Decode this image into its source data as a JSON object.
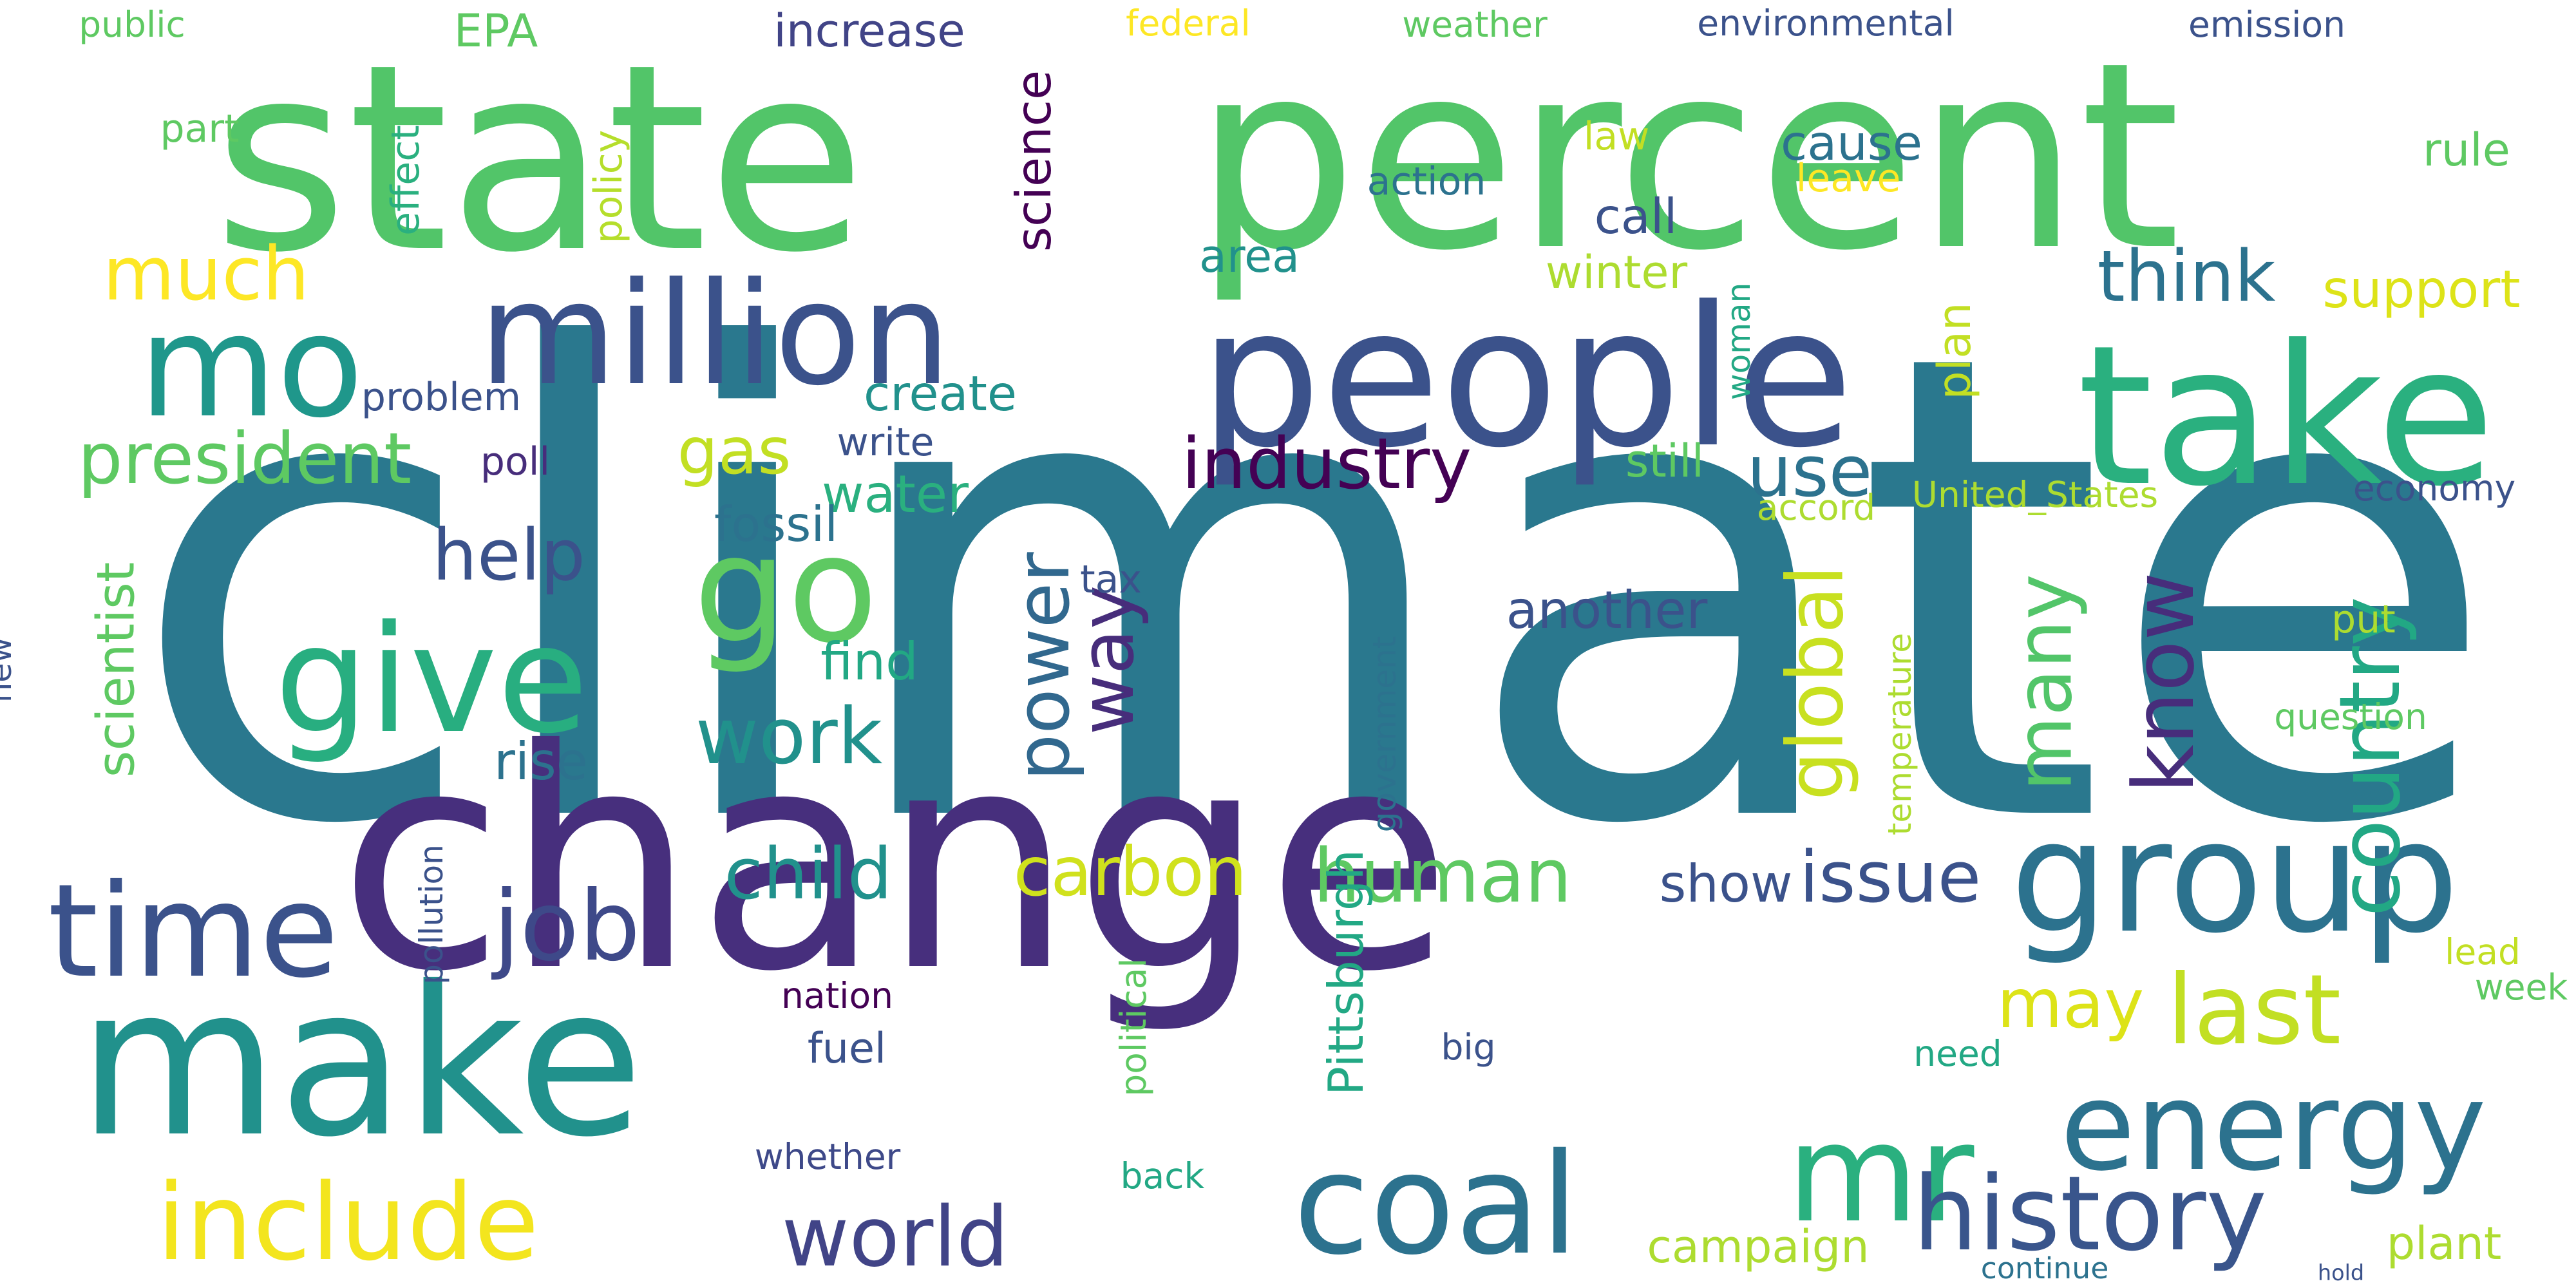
{
  "palette": {
    "background": "#ffffff",
    "c_dark_purple": "#440154",
    "c_purple": "#472d7b",
    "c_indigo": "#3b528b",
    "c_blue": "#2c728e",
    "c_teal": "#21918c",
    "c_green": "#28ae80",
    "c_lime": "#5ec962",
    "c_yellowgreen": "#addc30",
    "c_yellow": "#fde725"
  },
  "words": [
    {
      "text": "climate",
      "color": "#2a788e"
    },
    {
      "text": "change",
      "color": "#472f7d"
    },
    {
      "text": "state",
      "color": "#52c569"
    },
    {
      "text": "percent",
      "color": "#52c569"
    },
    {
      "text": "people",
      "color": "#3b528b"
    },
    {
      "text": "take",
      "color": "#2ab07f"
    },
    {
      "text": "make",
      "color": "#21918c"
    },
    {
      "text": "million",
      "color": "#3b528b"
    },
    {
      "text": "mo",
      "color": "#1f978b"
    },
    {
      "text": "new",
      "color": "#3b528b"
    },
    {
      "text": "go",
      "color": "#5ec962"
    },
    {
      "text": "give",
      "color": "#28ae80"
    },
    {
      "text": "time",
      "color": "#3b528b"
    },
    {
      "text": "job",
      "color": "#3e4989"
    },
    {
      "text": "world",
      "color": "#414487"
    },
    {
      "text": "coal",
      "color": "#2c728e"
    },
    {
      "text": "include",
      "color": "#f3e51e"
    },
    {
      "text": "energy",
      "color": "#2c728e"
    },
    {
      "text": "group",
      "color": "#2c728e"
    },
    {
      "text": "mr",
      "color": "#2ab07f"
    },
    {
      "text": "history",
      "color": "#39558c"
    },
    {
      "text": "last",
      "color": "#c2df23"
    },
    {
      "text": "country",
      "color": "#22a884"
    },
    {
      "text": "industry",
      "color": "#440154"
    },
    {
      "text": "use",
      "color": "#2c728e"
    },
    {
      "text": "think",
      "color": "#2c728e"
    },
    {
      "text": "president",
      "color": "#5ec962"
    },
    {
      "text": "help",
      "color": "#3b528b"
    },
    {
      "text": "work",
      "color": "#21918c"
    },
    {
      "text": "power",
      "color": "#31688e"
    },
    {
      "text": "way",
      "color": "#472d7b"
    },
    {
      "text": "global",
      "color": "#c8e020"
    },
    {
      "text": "many",
      "color": "#52c569"
    },
    {
      "text": "know",
      "color": "#472d7b"
    },
    {
      "text": "child",
      "color": "#21918c"
    },
    {
      "text": "carbon",
      "color": "#d0e11c"
    },
    {
      "text": "human",
      "color": "#5ec962"
    },
    {
      "text": "issue",
      "color": "#3b528b"
    },
    {
      "text": "may",
      "color": "#dde318"
    },
    {
      "text": "much",
      "color": "#fde725"
    },
    {
      "text": "scientist",
      "color": "#5ec962"
    },
    {
      "text": "rise",
      "color": "#2c728e"
    },
    {
      "text": "gas",
      "color": "#c2df23"
    },
    {
      "text": "water",
      "color": "#2ab07f"
    },
    {
      "text": "fossil",
      "color": "#2c728e"
    },
    {
      "text": "find",
      "color": "#22a884"
    },
    {
      "text": "create",
      "color": "#21918c"
    },
    {
      "text": "write",
      "color": "#3b528b"
    },
    {
      "text": "problem",
      "color": "#3b528b"
    },
    {
      "text": "poll",
      "color": "#472d7b"
    },
    {
      "text": "tax",
      "color": "#3b528b"
    },
    {
      "text": "another",
      "color": "#3b528b"
    },
    {
      "text": "show",
      "color": "#3b528b"
    },
    {
      "text": "public",
      "color": "#5ec962"
    },
    {
      "text": "EPA",
      "color": "#5ec962"
    },
    {
      "text": "increase",
      "color": "#414487"
    },
    {
      "text": "federal",
      "color": "#fde725"
    },
    {
      "text": "weather",
      "color": "#5ec962"
    },
    {
      "text": "environmental",
      "color": "#3b528b"
    },
    {
      "text": "emission",
      "color": "#3b528b"
    },
    {
      "text": "part",
      "color": "#5ec962"
    },
    {
      "text": "effect",
      "color": "#2ab07f"
    },
    {
      "text": "policy",
      "color": "#b5de2b"
    },
    {
      "text": "science",
      "color": "#440154"
    },
    {
      "text": "law",
      "color": "#c2df23"
    },
    {
      "text": "cause",
      "color": "#2c728e"
    },
    {
      "text": "leave",
      "color": "#fde725"
    },
    {
      "text": "rule",
      "color": "#5ec962"
    },
    {
      "text": "action",
      "color": "#2c728e"
    },
    {
      "text": "call",
      "color": "#3b528b"
    },
    {
      "text": "area",
      "color": "#21918c"
    },
    {
      "text": "winter",
      "color": "#addc30"
    },
    {
      "text": "support",
      "color": "#dde318"
    },
    {
      "text": "woman",
      "color": "#22a884"
    },
    {
      "text": "plan",
      "color": "#c2df23"
    },
    {
      "text": "still",
      "color": "#5ec962"
    },
    {
      "text": "accord",
      "color": "#addc30"
    },
    {
      "text": "United_States",
      "color": "#addc30"
    },
    {
      "text": "economy",
      "color": "#3b528b"
    },
    {
      "text": "put",
      "color": "#addc30"
    },
    {
      "text": "question",
      "color": "#5ec962"
    },
    {
      "text": "temperature",
      "color": "#addc30"
    },
    {
      "text": "government",
      "color": "#2c728e"
    },
    {
      "text": "pollution",
      "color": "#3b528b"
    },
    {
      "text": "political",
      "color": "#5ec962"
    },
    {
      "text": "Pittsburgh",
      "color": "#22a884"
    },
    {
      "text": "nation",
      "color": "#440154"
    },
    {
      "text": "fuel",
      "color": "#3b528b"
    },
    {
      "text": "big",
      "color": "#3b528b"
    },
    {
      "text": "need",
      "color": "#22a884"
    },
    {
      "text": "whether",
      "color": "#3e4989"
    },
    {
      "text": "back",
      "color": "#22a884"
    },
    {
      "text": "campaign",
      "color": "#addc30"
    },
    {
      "text": "continue",
      "color": "#2c728e"
    },
    {
      "text": "hold",
      "color": "#3b528b"
    },
    {
      "text": "plant",
      "color": "#addc30"
    },
    {
      "text": "lead",
      "color": "#c2df23"
    },
    {
      "text": "week",
      "color": "#5ec962"
    }
  ]
}
